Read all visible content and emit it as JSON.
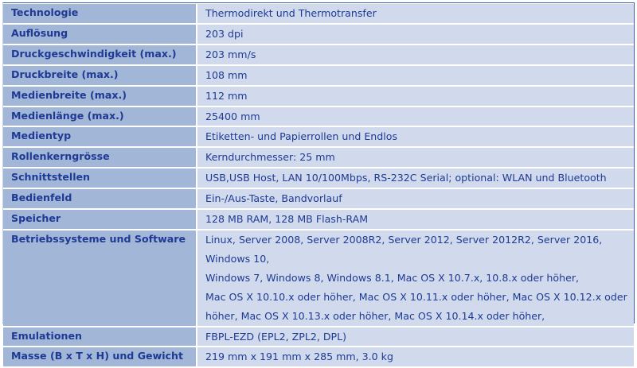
{
  "rows": [
    {
      "label": "Technologie",
      "value": "Thermodirekt und Thermotransfer"
    },
    {
      "label": "Auflösung",
      "value": "203 dpi"
    },
    {
      "label": "Druckgeschwindigkeit (max.)",
      "value": "203 mm/s"
    },
    {
      "label": "Druckbreite (max.)",
      "value": "108 mm"
    },
    {
      "label": "Medienbreite (max.)",
      "value": "112 mm"
    },
    {
      "label": "Medienlänge (max.)",
      "value": "25400 mm"
    },
    {
      "label": "Medientyp",
      "value": "Etiketten- und Papierrollen und Endlos"
    },
    {
      "label": "Rollenkerngrösse",
      "value": "Kerndurchmesser: 25 mm"
    },
    {
      "label": "Schnittstellen",
      "value": "USB,USB Host, LAN 10/100Mbps, RS-232C Serial; optional: WLAN und Bluetooth"
    },
    {
      "label": "Bedienfeld",
      "value": "Ein-/Aus-Taste, Bandvorlauf"
    },
    {
      "label": "Speicher",
      "value": "128 MB RAM, 128 MB Flash-RAM"
    },
    {
      "label": "Betriebssysteme und Software",
      "value_lines": [
        "Linux, Server 2008, Server 2008R2, Server 2012, Server 2012R2, Server 2016, Windows 10,",
        "Windows 7, Windows 8, Windows 8.1, Mac OS X 10.7.x, 10.8.x oder höher,",
        "Mac OS X 10.10.x oder höher, Mac OS X 10.11.x oder höher, Mac OS X 10.12.x oder",
        "höher, Mac OS X 10.13.x oder höher, Mac OS X 10.14.x oder höher,"
      ]
    },
    {
      "label": "Emulationen",
      "value": "FBPL-EZD (EPL2, ZPL2, DPL)"
    },
    {
      "label": "Masse (B x T x H) und Gewicht",
      "value": "219 mm x 191 mm x 285 mm, 3.0 kg"
    }
  ],
  "colors": {
    "label_bg": "#a2b6d8",
    "value_bg": "#d0daec",
    "text": "#1e3a94",
    "border": "#3a62ad"
  }
}
